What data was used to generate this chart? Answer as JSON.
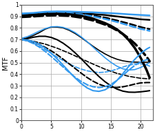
{
  "xlim": [
    0,
    22
  ],
  "ylim": [
    0,
    1.0
  ],
  "xticks": [
    0,
    5,
    10,
    15,
    20
  ],
  "yticks": [
    0,
    0.1,
    0.2,
    0.3,
    0.4,
    0.5,
    0.6,
    0.7,
    0.8,
    0.9,
    1
  ],
  "ylabel": "MTF",
  "background_color": "#ffffff",
  "grid_color": "#aaaaaa",
  "curves": [
    {
      "x": [
        0,
        2,
        4,
        6,
        8,
        10,
        12,
        14,
        16,
        18,
        20,
        21.5
      ],
      "y": [
        0.91,
        0.915,
        0.925,
        0.93,
        0.93,
        0.925,
        0.92,
        0.912,
        0.9,
        0.888,
        0.875,
        0.87
      ],
      "color": "#000000",
      "lw": 1.8,
      "ls": "solid"
    },
    {
      "x": [
        0,
        2,
        4,
        6,
        8,
        10,
        12,
        14,
        16,
        18,
        20,
        21.5
      ],
      "y": [
        0.91,
        0.915,
        0.922,
        0.928,
        0.928,
        0.92,
        0.908,
        0.89,
        0.865,
        0.838,
        0.808,
        0.79
      ],
      "color": "#000000",
      "lw": 1.8,
      "ls": "dashed"
    },
    {
      "x": [
        0,
        2,
        4,
        6,
        8,
        10,
        12,
        14,
        16,
        18,
        20,
        21.5
      ],
      "y": [
        0.925,
        0.93,
        0.94,
        0.943,
        0.942,
        0.938,
        0.935,
        0.93,
        0.925,
        0.918,
        0.912,
        0.908
      ],
      "color": "#3399ee",
      "lw": 1.8,
      "ls": "solid"
    },
    {
      "x": [
        0,
        2,
        4,
        6,
        8,
        10,
        12,
        14,
        16,
        18,
        20,
        21.5
      ],
      "y": [
        0.915,
        0.92,
        0.93,
        0.932,
        0.928,
        0.918,
        0.9,
        0.878,
        0.852,
        0.822,
        0.792,
        0.775
      ],
      "color": "#3399ee",
      "lw": 1.8,
      "ls": "dashed"
    },
    {
      "x": [
        0,
        1,
        2,
        3,
        4,
        5,
        6,
        7,
        8,
        9,
        10,
        11,
        12,
        13,
        14,
        15,
        16,
        17,
        18,
        19,
        20,
        21,
        21.5
      ],
      "y": [
        0.7,
        0.715,
        0.735,
        0.76,
        0.79,
        0.808,
        0.808,
        0.8,
        0.78,
        0.752,
        0.718,
        0.68,
        0.642,
        0.607,
        0.576,
        0.55,
        0.53,
        0.516,
        0.508,
        0.505,
        0.504,
        0.504,
        0.504
      ],
      "color": "#000000",
      "lw": 1.2,
      "ls": "solid"
    },
    {
      "x": [
        0,
        2,
        4,
        6,
        8,
        10,
        12,
        14,
        16,
        18,
        20,
        21.5
      ],
      "y": [
        0.7,
        0.685,
        0.66,
        0.625,
        0.582,
        0.535,
        0.488,
        0.444,
        0.408,
        0.382,
        0.365,
        0.36
      ],
      "color": "#000000",
      "lw": 1.2,
      "ls": "dashed"
    },
    {
      "x": [
        0,
        1,
        2,
        3,
        4,
        5,
        6,
        7,
        8,
        9,
        10,
        11,
        12,
        13,
        14,
        15,
        16,
        17,
        18,
        19,
        20,
        21,
        21.5
      ],
      "y": [
        0.71,
        0.725,
        0.748,
        0.773,
        0.795,
        0.81,
        0.812,
        0.805,
        0.787,
        0.76,
        0.724,
        0.682,
        0.635,
        0.588,
        0.543,
        0.503,
        0.47,
        0.447,
        0.436,
        0.44,
        0.458,
        0.485,
        0.502
      ],
      "color": "#3399ee",
      "lw": 1.2,
      "ls": "solid"
    },
    {
      "x": [
        0,
        1,
        2,
        3,
        4,
        5,
        6,
        7,
        8,
        9,
        10,
        11,
        12,
        13,
        14,
        15,
        16,
        17,
        18,
        19,
        20,
        21,
        21.5
      ],
      "y": [
        0.7,
        0.688,
        0.668,
        0.642,
        0.612,
        0.58,
        0.548,
        0.518,
        0.49,
        0.465,
        0.445,
        0.43,
        0.42,
        0.415,
        0.418,
        0.428,
        0.444,
        0.462,
        0.478,
        0.488,
        0.49,
        0.48,
        0.47
      ],
      "color": "#3399ee",
      "lw": 1.2,
      "ls": "dashed"
    },
    {
      "x": [
        0,
        2,
        4,
        6,
        8,
        10,
        12,
        14,
        15,
        16,
        17,
        18,
        19,
        20,
        21,
        21.5
      ],
      "y": [
        0.905,
        0.912,
        0.92,
        0.922,
        0.918,
        0.905,
        0.88,
        0.842,
        0.818,
        0.788,
        0.748,
        0.695,
        0.628,
        0.542,
        0.435,
        0.37
      ],
      "color": "#000000",
      "lw": 2.5,
      "ls": "solid"
    },
    {
      "x": [
        0,
        2,
        4,
        6,
        8,
        10,
        12,
        14,
        15,
        16,
        17,
        18,
        19,
        20,
        21,
        21.5
      ],
      "y": [
        0.895,
        0.9,
        0.908,
        0.91,
        0.905,
        0.89,
        0.865,
        0.83,
        0.808,
        0.78,
        0.748,
        0.71,
        0.665,
        0.612,
        0.55,
        0.512
      ],
      "color": "#000000",
      "lw": 2.5,
      "ls": "dashed"
    },
    {
      "x": [
        0,
        1,
        2,
        3,
        4,
        5,
        6,
        7,
        8,
        9,
        10,
        11,
        12,
        13,
        14,
        15,
        16,
        17,
        18,
        19,
        20,
        21,
        21.5
      ],
      "y": [
        0.7,
        0.708,
        0.72,
        0.728,
        0.728,
        0.718,
        0.698,
        0.668,
        0.63,
        0.585,
        0.535,
        0.482,
        0.43,
        0.38,
        0.336,
        0.3,
        0.272,
        0.254,
        0.245,
        0.244,
        0.248,
        0.254,
        0.258
      ],
      "color": "#000000",
      "lw": 1.5,
      "ls": "solid"
    },
    {
      "x": [
        0,
        1,
        2,
        3,
        4,
        5,
        6,
        7,
        8,
        9,
        10,
        11,
        12,
        13,
        14,
        15,
        16,
        17,
        18,
        19,
        20,
        21,
        21.5
      ],
      "y": [
        0.7,
        0.692,
        0.678,
        0.658,
        0.632,
        0.602,
        0.568,
        0.53,
        0.49,
        0.45,
        0.41,
        0.372,
        0.34,
        0.314,
        0.296,
        0.287,
        0.285,
        0.291,
        0.302,
        0.315,
        0.325,
        0.328,
        0.328
      ],
      "color": "#000000",
      "lw": 1.5,
      "ls": "dashed"
    },
    {
      "x": [
        0,
        1,
        2,
        3,
        4,
        5,
        6,
        7,
        8,
        9,
        10,
        11,
        12,
        13,
        14,
        15,
        16,
        17,
        18,
        19,
        20,
        21,
        21.5
      ],
      "y": [
        0.7,
        0.696,
        0.682,
        0.658,
        0.625,
        0.582,
        0.532,
        0.478,
        0.422,
        0.368,
        0.32,
        0.282,
        0.258,
        0.252,
        0.265,
        0.296,
        0.345,
        0.405,
        0.468,
        0.528,
        0.58,
        0.618,
        0.632
      ],
      "color": "#3399ee",
      "lw": 1.5,
      "ls": "solid"
    },
    {
      "x": [
        0,
        1,
        2,
        3,
        4,
        5,
        6,
        7,
        8,
        9,
        10,
        11,
        12,
        13,
        14,
        15,
        16,
        17,
        18,
        19,
        20,
        21,
        21.5
      ],
      "y": [
        0.7,
        0.688,
        0.665,
        0.634,
        0.596,
        0.553,
        0.508,
        0.462,
        0.416,
        0.374,
        0.338,
        0.31,
        0.292,
        0.285,
        0.292,
        0.312,
        0.346,
        0.39,
        0.435,
        0.476,
        0.508,
        0.525,
        0.53
      ],
      "color": "#3399ee",
      "lw": 1.5,
      "ls": "dashed"
    }
  ]
}
